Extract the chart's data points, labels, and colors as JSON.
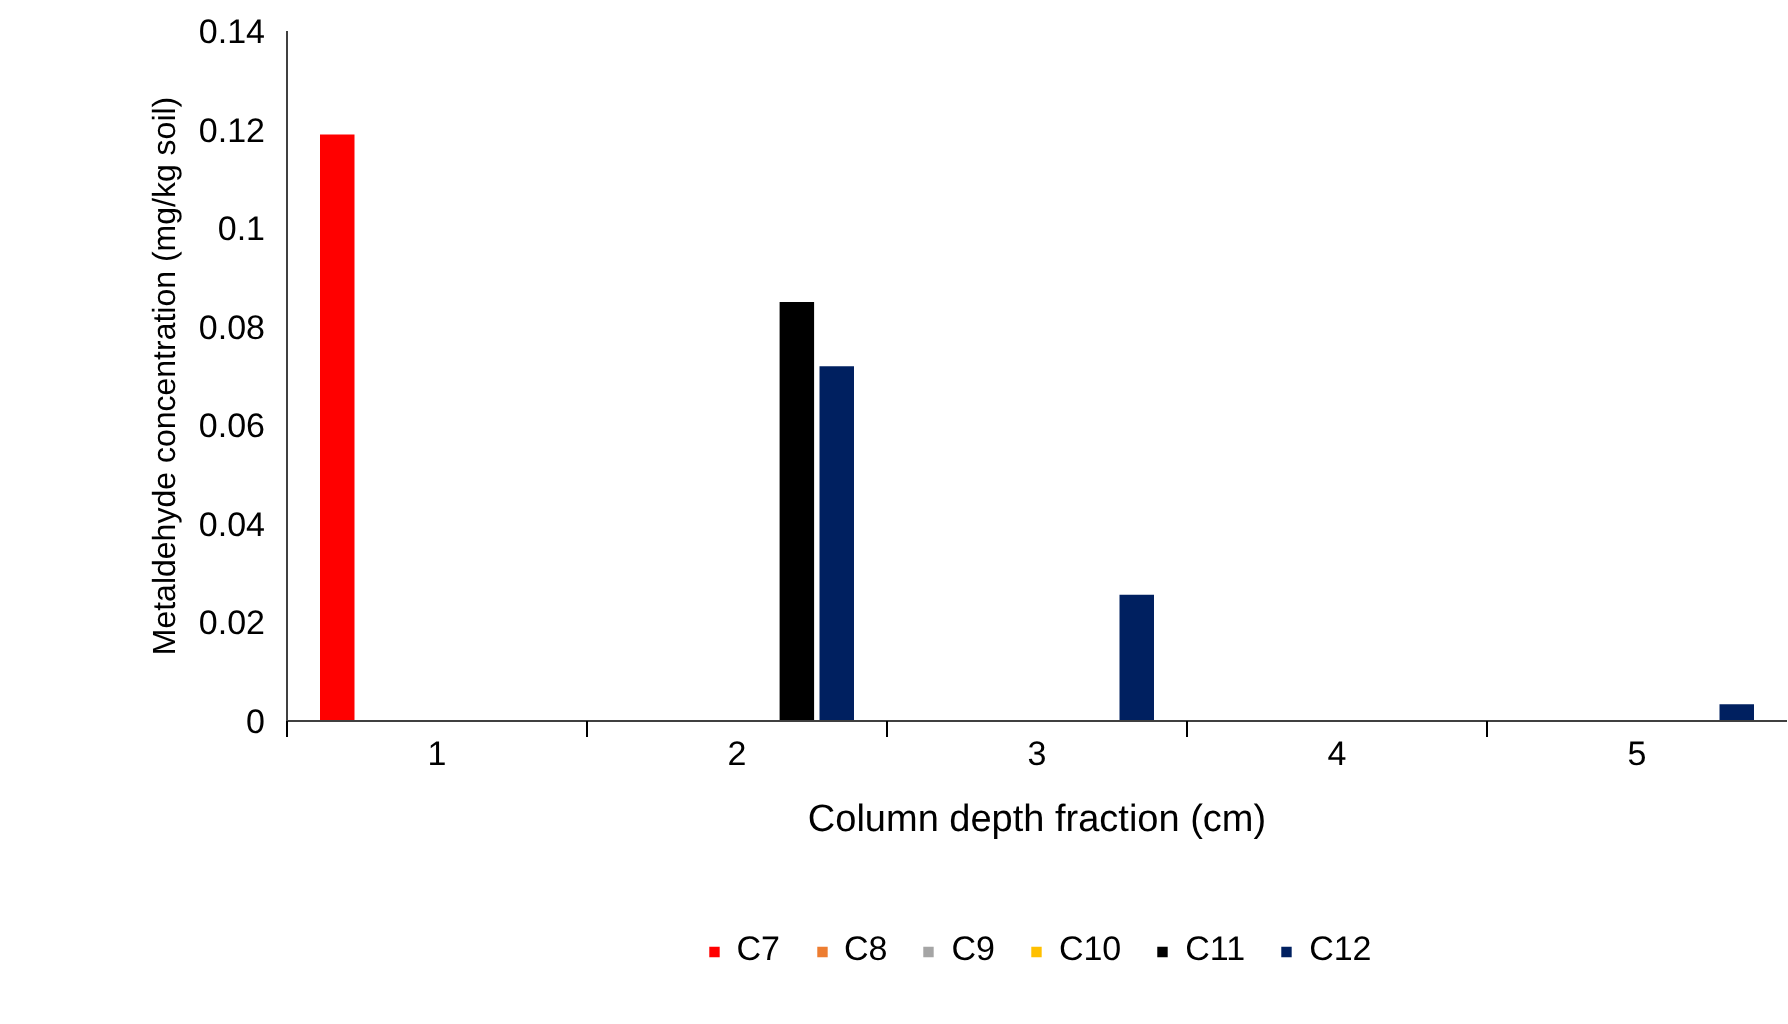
{
  "chart_data": {
    "type": "bar",
    "xlabel": "Column depth fraction (cm)",
    "ylabel": "Metaldehyde concentration (mg/kg soil)",
    "categories": [
      "1",
      "2",
      "3",
      "4",
      "5"
    ],
    "series": [
      {
        "name": "C7",
        "color": "#ff0000",
        "values": [
          0.119,
          0,
          0,
          0,
          0
        ]
      },
      {
        "name": "C8",
        "color": "#ed7d31",
        "values": [
          0,
          0,
          0,
          0,
          0
        ]
      },
      {
        "name": "C9",
        "color": "#a5a5a5",
        "values": [
          0,
          0,
          0,
          0,
          0
        ]
      },
      {
        "name": "C10",
        "color": "#ffc000",
        "values": [
          0,
          0,
          0,
          0,
          0
        ]
      },
      {
        "name": "C11",
        "color": "#000000",
        "values": [
          0,
          0.085,
          0,
          0,
          0
        ]
      },
      {
        "name": "C12",
        "color": "#002060",
        "values": [
          0,
          0.072,
          0.0256,
          0,
          0.0034
        ]
      }
    ],
    "ylim": [
      0,
      0.14
    ],
    "yticks": [
      0,
      {
        "value": 0.02,
        "label": "0.02"
      },
      {
        "value": 0.04,
        "label": "0.04"
      },
      {
        "value": 0.06,
        "label": "0.06"
      },
      {
        "value": 0.08,
        "label": "0.08"
      },
      {
        "value": 0.1,
        "label": "0.1"
      },
      {
        "value": 0.12,
        "label": "0.12"
      },
      {
        "value": 0.14,
        "label": "0.14"
      }
    ],
    "grid": false,
    "legend": "bottom"
  }
}
